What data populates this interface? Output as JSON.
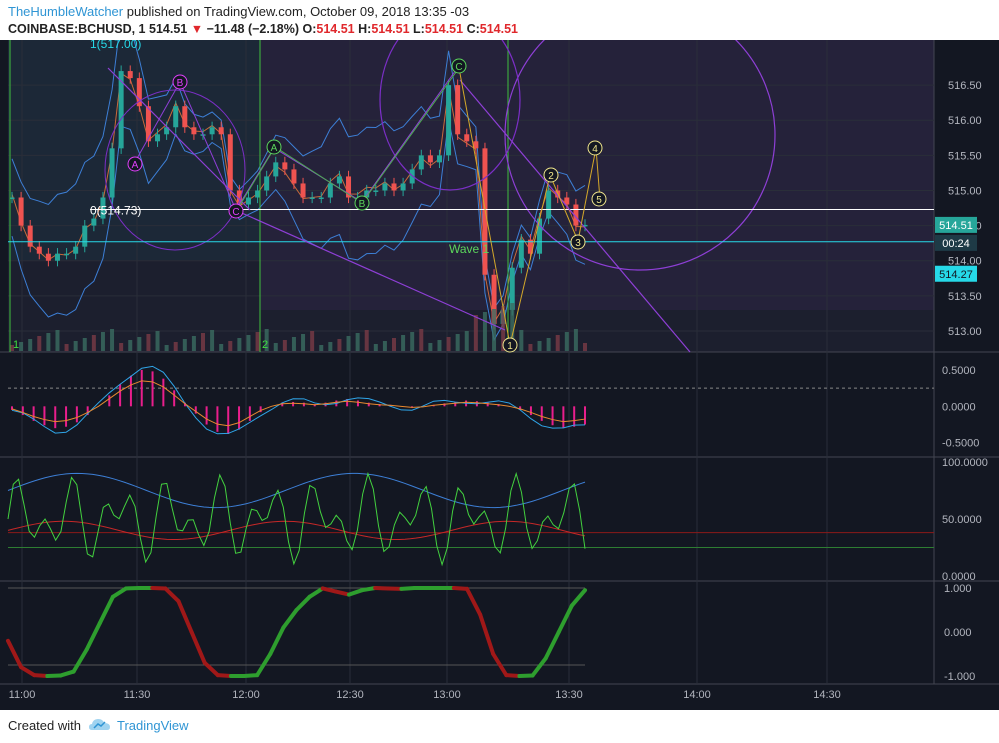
{
  "header": {
    "author": "TheHumbleWatcher",
    "published_text": "published on TradingView.com, October 09, 2018 13:35 -03",
    "symbol": "COINBASE:BCHUSD, 1",
    "last": "514.51",
    "change": "−11.48 (−2.18%)",
    "o_label": "O:",
    "o": "514.51",
    "h_label": "H:",
    "h": "514.51",
    "l_label": "L:",
    "l": "514.51",
    "c_label": "C:",
    "c": "514.51"
  },
  "footer": {
    "created_with": "Created with",
    "brand": "TradingView"
  },
  "colors": {
    "background": "#131722",
    "up": "#26a69a",
    "down": "#ef5350",
    "grid": "#2a2e39",
    "axis_text": "#b2b5be",
    "wave_label": "#f0e68c",
    "abc_pink": "#e040fb",
    "abc_green": "#5cd65c",
    "cyan": "#26d9e8"
  },
  "chart_data": [
    {
      "type": "candlestick",
      "pane": "price",
      "y_ticks": [
        "516.50",
        "516.00",
        "515.50",
        "515.00",
        "514.50",
        "514.00",
        "513.50",
        "513.00"
      ],
      "ylim": [
        512.8,
        517.0
      ],
      "price_badge": "514.51",
      "countdown_badge": "00:24",
      "cyan_badge": "514.27",
      "fib_label": "0(514.73)",
      "fib_top_label": "1(517.00)",
      "fib_level": 514.73,
      "wave_text": "Wave 1",
      "abc_labels": [
        "A",
        "B",
        "C"
      ],
      "wave_labels": [
        "1",
        "2",
        "3",
        "4",
        "5"
      ],
      "session_markers": [
        "1",
        "2"
      ],
      "x_ticks": [
        "11:00",
        "11:30",
        "12:00",
        "12:30",
        "13:00",
        "13:30",
        "14:00",
        "14:30"
      ],
      "close_series": [
        514.9,
        514.5,
        514.2,
        514.1,
        514.0,
        514.1,
        514.1,
        514.2,
        514.5,
        514.6,
        514.9,
        515.6,
        516.7,
        516.6,
        516.2,
        515.7,
        515.8,
        515.9,
        516.2,
        515.9,
        515.8,
        515.8,
        515.9,
        515.8,
        515.0,
        514.8,
        514.9,
        515.0,
        515.2,
        515.4,
        515.3,
        515.1,
        514.9,
        514.9,
        514.9,
        515.1,
        515.2,
        514.9,
        514.9,
        515.0,
        515.0,
        515.1,
        515.0,
        515.1,
        515.3,
        515.5,
        515.4,
        515.5,
        516.5,
        515.8,
        515.7,
        515.6,
        513.8,
        513.1,
        513.3,
        513.9,
        514.3,
        514.1,
        514.6,
        515.0,
        514.9,
        514.8,
        514.5,
        514.51
      ]
    },
    {
      "type": "line",
      "pane": "macd",
      "y_ticks": [
        "0.5000",
        "0.0000",
        "-0.5000"
      ],
      "ylim": [
        -0.6,
        0.65
      ],
      "histogram": [
        -0.05,
        -0.12,
        -0.2,
        -0.26,
        -0.3,
        -0.28,
        -0.22,
        -0.12,
        0.0,
        0.15,
        0.3,
        0.42,
        0.5,
        0.48,
        0.38,
        0.22,
        0.05,
        -0.1,
        -0.25,
        -0.35,
        -0.38,
        -0.32,
        -0.2,
        -0.08,
        0.0,
        0.05,
        0.06,
        0.05,
        0.03,
        0.05,
        0.08,
        0.1,
        0.08,
        0.05,
        0.03,
        0.02,
        0.0,
        -0.02,
        -0.01,
        0.02,
        0.04,
        0.06,
        0.08,
        0.07,
        0.05,
        0.03,
        0.0,
        -0.05,
        -0.12,
        -0.2,
        -0.26,
        -0.3,
        -0.28,
        -0.25
      ]
    },
    {
      "type": "line",
      "pane": "rsi",
      "y_ticks": [
        "100.0000",
        "50.0000",
        "0.0000"
      ],
      "ylim": [
        0,
        100
      ]
    },
    {
      "type": "line",
      "pane": "oscillator",
      "y_ticks": [
        "1.000",
        "0.000",
        "-1.000"
      ],
      "ylim": [
        -1,
        1
      ],
      "values": [
        -0.2,
        -0.8,
        -0.98,
        -1.0,
        -0.99,
        -0.9,
        -0.4,
        0.2,
        0.8,
        0.99,
        1.0,
        1.0,
        0.99,
        0.7,
        0.0,
        -0.7,
        -0.98,
        -1.0,
        -1.0,
        -0.98,
        -0.5,
        0.1,
        0.5,
        0.8,
        0.99,
        0.92,
        0.85,
        0.95,
        1.0,
        0.99,
        0.98,
        1.0,
        1.0,
        1.0,
        1.0,
        0.98,
        0.4,
        -0.5,
        -0.98,
        -1.0,
        -0.99,
        -0.6,
        0.0,
        0.6,
        0.95
      ]
    }
  ]
}
